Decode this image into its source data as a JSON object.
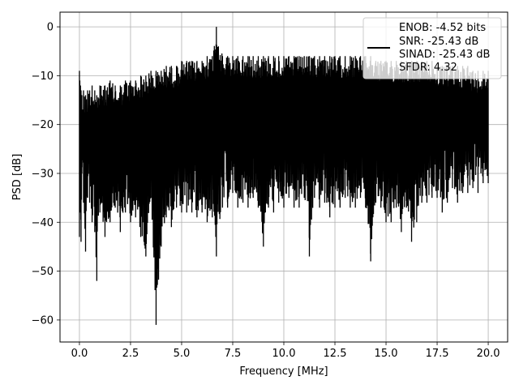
{
  "chart_data": {
    "type": "line",
    "title": "",
    "xlabel": "Frequency [MHz]",
    "ylabel": "PSD [dB]",
    "xlim": [
      -0.95,
      20.95
    ],
    "ylim": [
      -64.5,
      3.0
    ],
    "xticks": [
      0.0,
      2.5,
      5.0,
      7.5,
      10.0,
      12.5,
      15.0,
      17.5,
      20.0
    ],
    "xtick_labels": [
      "0.0",
      "2.5",
      "5.0",
      "7.5",
      "10.0",
      "12.5",
      "15.0",
      "17.5",
      "20.0"
    ],
    "yticks": [
      0,
      -10,
      -20,
      -30,
      -40,
      -50,
      -60
    ],
    "ytick_labels": [
      "0",
      "−10",
      "−20",
      "−30",
      "−40",
      "−50",
      "−60"
    ],
    "grid": true,
    "line_color": "#000000",
    "legend": {
      "placement": "top-right",
      "entries": [
        "ENOB: -4.52 bits",
        "SNR: -25.43 dB",
        "SINAD: -25.43 dB",
        "SFDR: 4.32"
      ]
    },
    "series": [
      {
        "x": [
          0.0,
          0.02,
          0.05,
          0.08,
          0.12,
          0.2,
          0.3,
          0.4,
          0.5,
          0.62,
          0.75,
          0.85,
          1.0,
          1.25,
          1.5,
          1.75,
          2.0,
          2.25,
          2.5,
          2.75,
          3.0,
          3.25,
          3.5,
          3.75,
          4.0,
          4.25,
          4.5,
          4.75,
          5.0,
          5.25,
          5.5,
          5.75,
          6.0,
          6.25,
          6.5,
          6.7,
          7.0,
          7.25,
          7.5,
          7.75,
          8.0,
          8.25,
          8.5,
          8.75,
          9.0,
          9.25,
          9.5,
          9.75,
          10.0,
          10.25,
          10.5,
          10.75,
          11.0,
          11.25,
          11.5,
          11.75,
          12.0,
          12.25,
          12.5,
          12.75,
          13.0,
          13.25,
          13.5,
          13.75,
          14.0,
          14.25,
          14.5,
          14.75,
          15.0,
          15.25,
          15.5,
          15.75,
          16.0,
          16.25,
          16.5,
          16.75,
          17.0,
          17.25,
          17.5,
          17.75,
          18.0,
          18.25,
          18.5,
          18.75,
          19.0,
          19.25,
          19.5,
          19.75,
          20.0
        ],
        "ymax": [
          -9,
          -11,
          -12,
          -13,
          -14,
          -13,
          -14,
          -13,
          -13,
          -12,
          -13,
          -14,
          -12,
          -12,
          -11,
          -12,
          -12,
          -11,
          -11,
          -11,
          -10,
          -10,
          -9,
          -9,
          -9,
          -8,
          -8,
          -8,
          -7,
          -7,
          -7,
          -7,
          -7,
          -6,
          -6,
          0,
          -6,
          -6,
          -6,
          -6,
          -6,
          -6,
          -6,
          -6,
          -6,
          -6,
          -6,
          -6,
          -6,
          -6,
          -6,
          -6,
          -6,
          -6,
          -6,
          -6,
          -6,
          -6,
          -6,
          -6,
          -6,
          -6,
          -6,
          -6,
          -6,
          -6,
          -7,
          -7,
          -7,
          -7,
          -7,
          -7,
          -7,
          -7,
          -7,
          -7,
          -7,
          -7,
          -8,
          -8,
          -8,
          -8,
          -8,
          -8,
          -8,
          -9,
          -9,
          -9,
          -9
        ],
        "ymin": [
          -43,
          -35,
          -38,
          -44,
          -30,
          -36,
          -46,
          -35,
          -36,
          -40,
          -42,
          -52,
          -38,
          -43,
          -40,
          -37,
          -42,
          -38,
          -40,
          -39,
          -43,
          -47,
          -35,
          -61,
          -45,
          -39,
          -41,
          -37,
          -38,
          -38,
          -38,
          -39,
          -38,
          -40,
          -39,
          -47,
          -37,
          -37,
          -34,
          -37,
          -36,
          -37,
          -35,
          -37,
          -45,
          -37,
          -38,
          -36,
          -37,
          -35,
          -37,
          -37,
          -35,
          -47,
          -35,
          -37,
          -36,
          -39,
          -37,
          -37,
          -35,
          -37,
          -37,
          -35,
          -37,
          -48,
          -36,
          -37,
          -40,
          -40,
          -37,
          -42,
          -37,
          -44,
          -40,
          -36,
          -36,
          -35,
          -35,
          -38,
          -36,
          -33,
          -36,
          -34,
          -34,
          -33,
          -34,
          -32,
          -32
        ]
      }
    ]
  }
}
